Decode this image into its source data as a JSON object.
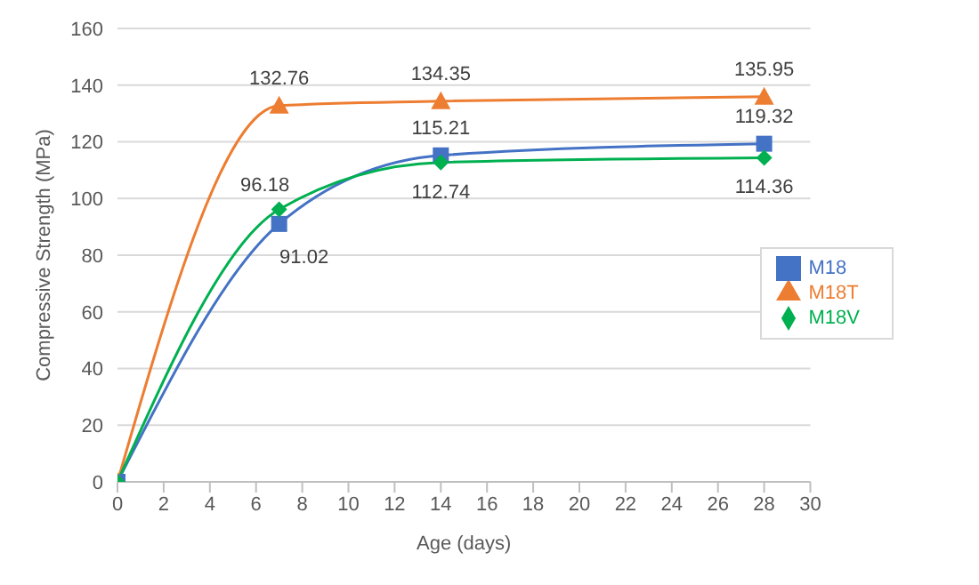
{
  "chart_data": {
    "type": "line",
    "xlabel": "Age (days)",
    "ylabel": "Compressive Strength (MPa)",
    "x": [
      0,
      7,
      14,
      28
    ],
    "series": [
      {
        "name": "M18",
        "color": "#4472c4",
        "marker": "square",
        "values": [
          0,
          91.02,
          115.21,
          119.32
        ],
        "value_labels": [
          null,
          "91.02",
          "115.21",
          "119.32"
        ]
      },
      {
        "name": "M18T",
        "color": "#ed7d31",
        "marker": "triangle",
        "values": [
          0,
          132.76,
          134.35,
          135.95
        ],
        "value_labels": [
          null,
          "132.76",
          "134.35",
          "135.95"
        ]
      },
      {
        "name": "M18V",
        "color": "#00b050",
        "marker": "diamond",
        "values": [
          0,
          96.18,
          112.74,
          114.36
        ],
        "value_labels": [
          null,
          "96.18",
          "112.74",
          "114.36"
        ]
      }
    ],
    "xlim": [
      0,
      30
    ],
    "xticks": [
      0,
      2,
      4,
      6,
      8,
      10,
      12,
      14,
      16,
      18,
      20,
      22,
      24,
      26,
      28,
      30
    ],
    "ylim": [
      0,
      160
    ],
    "yticks": [
      0,
      20,
      40,
      60,
      80,
      100,
      120,
      140,
      160
    ],
    "grid": "y",
    "legend": "right",
    "line_style": "solid"
  }
}
